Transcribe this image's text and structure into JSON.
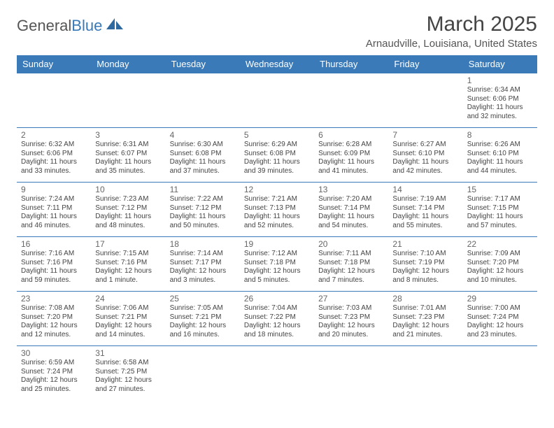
{
  "logo": {
    "text1": "General",
    "text2": "Blue"
  },
  "title": "March 2025",
  "location": "Arnaudville, Louisiana, United States",
  "columns": [
    "Sunday",
    "Monday",
    "Tuesday",
    "Wednesday",
    "Thursday",
    "Friday",
    "Saturday"
  ],
  "colors": {
    "header_bg": "#3a7ab8",
    "header_fg": "#ffffff",
    "border": "#3a7ab8",
    "text": "#444444",
    "muted": "#666666"
  },
  "typography": {
    "title_fontsize": 30,
    "location_fontsize": 15,
    "header_fontsize": 13,
    "daynum_fontsize": 12,
    "info_fontsize": 10
  },
  "weeks": [
    [
      null,
      null,
      null,
      null,
      null,
      null,
      {
        "n": "1",
        "sr": "Sunrise: 6:34 AM",
        "ss": "Sunset: 6:06 PM",
        "dl": "Daylight: 11 hours and 32 minutes."
      }
    ],
    [
      {
        "n": "2",
        "sr": "Sunrise: 6:32 AM",
        "ss": "Sunset: 6:06 PM",
        "dl": "Daylight: 11 hours and 33 minutes."
      },
      {
        "n": "3",
        "sr": "Sunrise: 6:31 AM",
        "ss": "Sunset: 6:07 PM",
        "dl": "Daylight: 11 hours and 35 minutes."
      },
      {
        "n": "4",
        "sr": "Sunrise: 6:30 AM",
        "ss": "Sunset: 6:08 PM",
        "dl": "Daylight: 11 hours and 37 minutes."
      },
      {
        "n": "5",
        "sr": "Sunrise: 6:29 AM",
        "ss": "Sunset: 6:08 PM",
        "dl": "Daylight: 11 hours and 39 minutes."
      },
      {
        "n": "6",
        "sr": "Sunrise: 6:28 AM",
        "ss": "Sunset: 6:09 PM",
        "dl": "Daylight: 11 hours and 41 minutes."
      },
      {
        "n": "7",
        "sr": "Sunrise: 6:27 AM",
        "ss": "Sunset: 6:10 PM",
        "dl": "Daylight: 11 hours and 42 minutes."
      },
      {
        "n": "8",
        "sr": "Sunrise: 6:26 AM",
        "ss": "Sunset: 6:10 PM",
        "dl": "Daylight: 11 hours and 44 minutes."
      }
    ],
    [
      {
        "n": "9",
        "sr": "Sunrise: 7:24 AM",
        "ss": "Sunset: 7:11 PM",
        "dl": "Daylight: 11 hours and 46 minutes."
      },
      {
        "n": "10",
        "sr": "Sunrise: 7:23 AM",
        "ss": "Sunset: 7:12 PM",
        "dl": "Daylight: 11 hours and 48 minutes."
      },
      {
        "n": "11",
        "sr": "Sunrise: 7:22 AM",
        "ss": "Sunset: 7:12 PM",
        "dl": "Daylight: 11 hours and 50 minutes."
      },
      {
        "n": "12",
        "sr": "Sunrise: 7:21 AM",
        "ss": "Sunset: 7:13 PM",
        "dl": "Daylight: 11 hours and 52 minutes."
      },
      {
        "n": "13",
        "sr": "Sunrise: 7:20 AM",
        "ss": "Sunset: 7:14 PM",
        "dl": "Daylight: 11 hours and 54 minutes."
      },
      {
        "n": "14",
        "sr": "Sunrise: 7:19 AM",
        "ss": "Sunset: 7:14 PM",
        "dl": "Daylight: 11 hours and 55 minutes."
      },
      {
        "n": "15",
        "sr": "Sunrise: 7:17 AM",
        "ss": "Sunset: 7:15 PM",
        "dl": "Daylight: 11 hours and 57 minutes."
      }
    ],
    [
      {
        "n": "16",
        "sr": "Sunrise: 7:16 AM",
        "ss": "Sunset: 7:16 PM",
        "dl": "Daylight: 11 hours and 59 minutes."
      },
      {
        "n": "17",
        "sr": "Sunrise: 7:15 AM",
        "ss": "Sunset: 7:16 PM",
        "dl": "Daylight: 12 hours and 1 minute."
      },
      {
        "n": "18",
        "sr": "Sunrise: 7:14 AM",
        "ss": "Sunset: 7:17 PM",
        "dl": "Daylight: 12 hours and 3 minutes."
      },
      {
        "n": "19",
        "sr": "Sunrise: 7:12 AM",
        "ss": "Sunset: 7:18 PM",
        "dl": "Daylight: 12 hours and 5 minutes."
      },
      {
        "n": "20",
        "sr": "Sunrise: 7:11 AM",
        "ss": "Sunset: 7:18 PM",
        "dl": "Daylight: 12 hours and 7 minutes."
      },
      {
        "n": "21",
        "sr": "Sunrise: 7:10 AM",
        "ss": "Sunset: 7:19 PM",
        "dl": "Daylight: 12 hours and 8 minutes."
      },
      {
        "n": "22",
        "sr": "Sunrise: 7:09 AM",
        "ss": "Sunset: 7:20 PM",
        "dl": "Daylight: 12 hours and 10 minutes."
      }
    ],
    [
      {
        "n": "23",
        "sr": "Sunrise: 7:08 AM",
        "ss": "Sunset: 7:20 PM",
        "dl": "Daylight: 12 hours and 12 minutes."
      },
      {
        "n": "24",
        "sr": "Sunrise: 7:06 AM",
        "ss": "Sunset: 7:21 PM",
        "dl": "Daylight: 12 hours and 14 minutes."
      },
      {
        "n": "25",
        "sr": "Sunrise: 7:05 AM",
        "ss": "Sunset: 7:21 PM",
        "dl": "Daylight: 12 hours and 16 minutes."
      },
      {
        "n": "26",
        "sr": "Sunrise: 7:04 AM",
        "ss": "Sunset: 7:22 PM",
        "dl": "Daylight: 12 hours and 18 minutes."
      },
      {
        "n": "27",
        "sr": "Sunrise: 7:03 AM",
        "ss": "Sunset: 7:23 PM",
        "dl": "Daylight: 12 hours and 20 minutes."
      },
      {
        "n": "28",
        "sr": "Sunrise: 7:01 AM",
        "ss": "Sunset: 7:23 PM",
        "dl": "Daylight: 12 hours and 21 minutes."
      },
      {
        "n": "29",
        "sr": "Sunrise: 7:00 AM",
        "ss": "Sunset: 7:24 PM",
        "dl": "Daylight: 12 hours and 23 minutes."
      }
    ],
    [
      {
        "n": "30",
        "sr": "Sunrise: 6:59 AM",
        "ss": "Sunset: 7:24 PM",
        "dl": "Daylight: 12 hours and 25 minutes."
      },
      {
        "n": "31",
        "sr": "Sunrise: 6:58 AM",
        "ss": "Sunset: 7:25 PM",
        "dl": "Daylight: 12 hours and 27 minutes."
      },
      null,
      null,
      null,
      null,
      null
    ]
  ]
}
